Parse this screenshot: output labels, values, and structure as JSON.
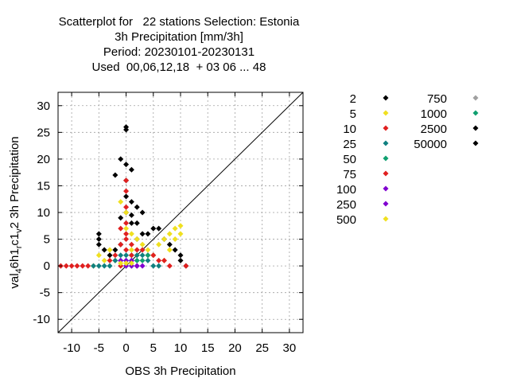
{
  "title_lines": [
    "Scatterplot for   22 stations Selection: Estonia",
    "3h Precipitation [mm/3h]",
    "Period: 20230101-20230131",
    "Used  00,06,12,18  + 03 06 ... 48"
  ],
  "chart_data": {
    "type": "scatter",
    "xlabel": "OBS 3h Precipitation",
    "ylabel_parts": [
      "val",
      "4",
      "6h1",
      "r",
      "c1",
      "v",
      "2 3h Precipitation"
    ],
    "xlim": [
      -12.5,
      32.5
    ],
    "ylim": [
      -12.5,
      32.5
    ],
    "xticks": [
      -10,
      -5,
      0,
      5,
      10,
      15,
      20,
      25,
      30
    ],
    "yticks": [
      -10,
      -5,
      0,
      5,
      10,
      15,
      20,
      25,
      30
    ],
    "grid": true,
    "diagonal": true,
    "legend_position": "right",
    "series": [
      {
        "name": "2",
        "color": "#000000",
        "points": [
          [
            0,
            26
          ],
          [
            0,
            25.5
          ],
          [
            0,
            16
          ],
          [
            -1,
            20
          ],
          [
            0,
            19
          ],
          [
            1,
            18
          ],
          [
            -2,
            17
          ],
          [
            0,
            13
          ],
          [
            1,
            12
          ],
          [
            2,
            11
          ],
          [
            3,
            10
          ],
          [
            -5,
            6
          ],
          [
            -5,
            5
          ],
          [
            -5,
            4
          ],
          [
            -4,
            3
          ],
          [
            -3,
            2
          ],
          [
            -2,
            3
          ],
          [
            4,
            6
          ],
          [
            5,
            7
          ],
          [
            6,
            7
          ],
          [
            7,
            5
          ],
          [
            8,
            4
          ],
          [
            9,
            3
          ],
          [
            10,
            2
          ],
          [
            10,
            1
          ],
          [
            11,
            0
          ],
          [
            1,
            8
          ],
          [
            2,
            8
          ],
          [
            3,
            6
          ],
          [
            -1,
            9
          ],
          [
            0,
            10
          ],
          [
            1,
            9.5
          ],
          [
            2,
            5
          ],
          [
            -1,
            4
          ]
        ]
      },
      {
        "name": "5",
        "color": "#f0e020",
        "points": [
          [
            -5,
            2
          ],
          [
            -4,
            1
          ],
          [
            -3,
            3
          ],
          [
            -1,
            12
          ],
          [
            0,
            10
          ],
          [
            1,
            6
          ],
          [
            2,
            5
          ],
          [
            3,
            4
          ],
          [
            4,
            3
          ],
          [
            5,
            2
          ],
          [
            6,
            4
          ],
          [
            7,
            5
          ],
          [
            8,
            6
          ],
          [
            9,
            7
          ],
          [
            10,
            7.5
          ],
          [
            10,
            6
          ],
          [
            9,
            5
          ],
          [
            8,
            3
          ],
          [
            7,
            1
          ],
          [
            -6,
            0
          ],
          [
            -2,
            1
          ],
          [
            0,
            7
          ],
          [
            1,
            3
          ],
          [
            2,
            2
          ]
        ]
      },
      {
        "name": "10",
        "color": "#e02020",
        "points": [
          [
            -12,
            0
          ],
          [
            -11,
            0
          ],
          [
            -10,
            0
          ],
          [
            -9,
            0
          ],
          [
            -8,
            0
          ],
          [
            -7,
            0
          ],
          [
            11,
            0
          ],
          [
            -1,
            4
          ],
          [
            0,
            5
          ],
          [
            0,
            8
          ],
          [
            0,
            11
          ],
          [
            -1,
            7
          ],
          [
            1,
            4
          ],
          [
            2,
            3
          ],
          [
            3,
            3
          ],
          [
            4,
            2
          ],
          [
            5,
            2
          ],
          [
            6,
            1
          ],
          [
            7,
            1
          ],
          [
            8,
            0
          ],
          [
            -3,
            1
          ],
          [
            -2,
            2
          ],
          [
            0,
            14
          ],
          [
            0,
            16
          ]
        ]
      },
      {
        "name": "25",
        "color": "#108080",
        "points": [
          [
            -6,
            0
          ],
          [
            -5,
            0
          ],
          [
            -4,
            0
          ],
          [
            -3,
            0
          ],
          [
            -2,
            1
          ],
          [
            -1,
            2
          ],
          [
            0,
            2
          ],
          [
            1,
            1
          ],
          [
            2,
            1
          ],
          [
            3,
            2
          ],
          [
            4,
            1
          ],
          [
            5,
            0
          ],
          [
            6,
            0
          ],
          [
            0,
            1
          ],
          [
            1,
            2
          ],
          [
            2,
            2
          ]
        ]
      },
      {
        "name": "50",
        "color": "#10a070",
        "points": [
          [
            1,
            0
          ],
          [
            2,
            1
          ],
          [
            3,
            1
          ],
          [
            4,
            2
          ],
          [
            0,
            0
          ],
          [
            -1,
            1
          ]
        ]
      },
      {
        "name": "75",
        "color": "#e02020",
        "points": [
          [
            0,
            3
          ],
          [
            1,
            2
          ],
          [
            2,
            0
          ],
          [
            -1,
            0
          ],
          [
            0,
            6
          ]
        ]
      },
      {
        "name": "100",
        "color": "#8000d0",
        "points": [
          [
            0,
            0
          ],
          [
            1,
            0
          ],
          [
            2,
            0
          ],
          [
            3,
            0
          ],
          [
            -1,
            1
          ],
          [
            0,
            1
          ]
        ]
      },
      {
        "name": "250",
        "color": "#8000d0",
        "points": [
          [
            1,
            1
          ],
          [
            2,
            0
          ]
        ]
      },
      {
        "name": "500",
        "color": "#f0e020",
        "points": [
          [
            0,
            0.5
          ],
          [
            1,
            0.5
          ],
          [
            -1,
            0.5
          ]
        ]
      },
      {
        "name": "750",
        "color": "#a0a0a0",
        "points": []
      },
      {
        "name": "1000",
        "color": "#10a070",
        "points": []
      },
      {
        "name": "2500",
        "color": "#000000",
        "points": []
      },
      {
        "name": "50000",
        "color": "#000000",
        "points": []
      }
    ]
  }
}
